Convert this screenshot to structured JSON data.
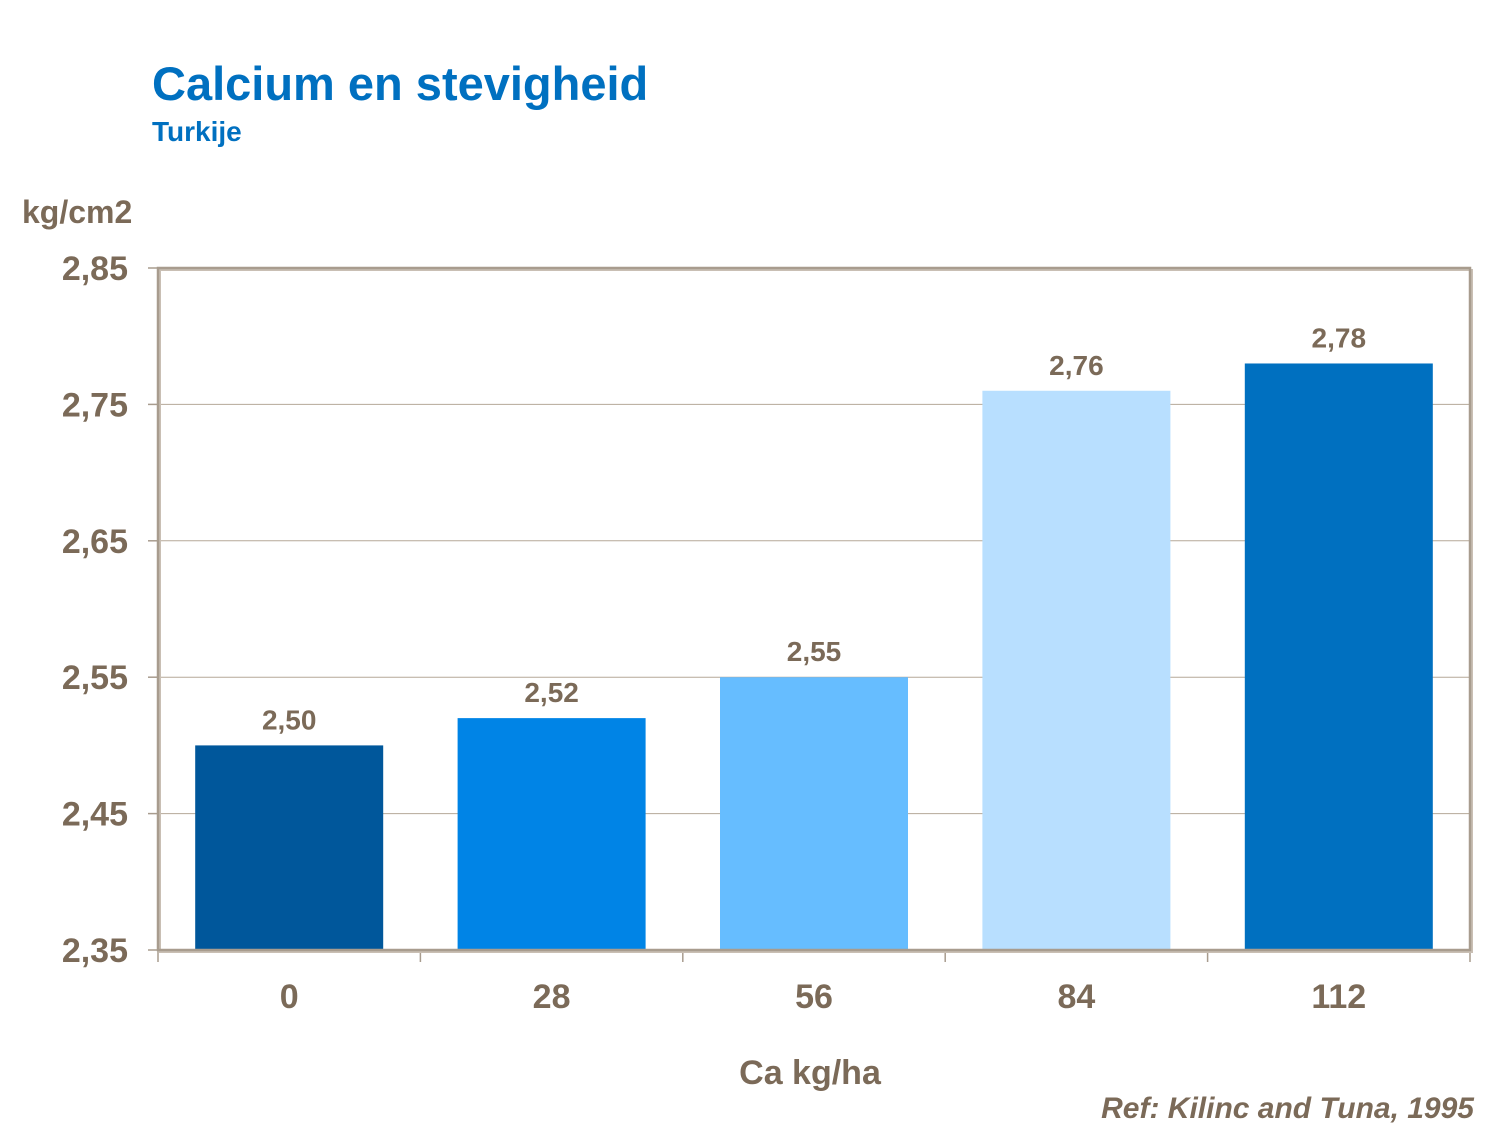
{
  "chart_data": {
    "type": "bar",
    "title": "Calcium en stevigheid",
    "subtitle": "Turkije",
    "ylabel": "kg/cm2",
    "xlabel": "Ca kg/ha",
    "categories": [
      "0",
      "28",
      "56",
      "84",
      "112"
    ],
    "values": [
      2.5,
      2.52,
      2.55,
      2.76,
      2.78
    ],
    "data_labels": [
      "2,50",
      "2,52",
      "2,55",
      "2,76",
      "2,78"
    ],
    "bar_colors": [
      "#00579B",
      "#0084E6",
      "#66BDFF",
      "#B8DFFF",
      "#0070C0"
    ],
    "ylim": [
      2.35,
      2.85
    ],
    "yticks": [
      2.35,
      2.45,
      2.55,
      2.65,
      2.75,
      2.85
    ],
    "ytick_labels": [
      "2,35",
      "2,45",
      "2,55",
      "2,65",
      "2,75",
      "2,85"
    ],
    "grid": true,
    "legend": "none",
    "reference": "Ref: Kilinc and Tuna, 1995"
  }
}
